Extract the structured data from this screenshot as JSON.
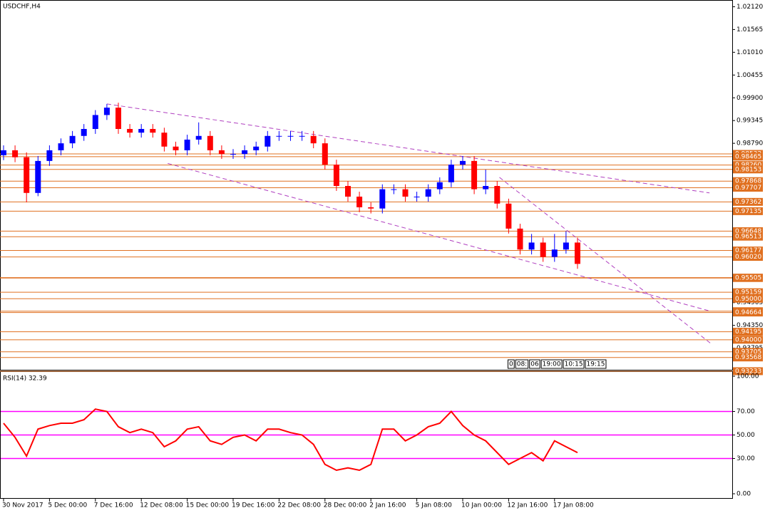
{
  "chart_data": [
    {
      "type": "candlestick",
      "title": "USDCHF,H4",
      "categories": [
        "30 Nov 2017",
        null,
        null,
        null,
        "5 Dec 00:00",
        null,
        null,
        null,
        "7 Dec 16:00",
        null,
        null,
        null,
        "12 Dec 08:00",
        null,
        null,
        null,
        "15 Dec 00:00",
        null,
        null,
        null,
        "19 Dec 16:00",
        null,
        null,
        null,
        "22 Dec 08:00",
        null,
        null,
        null,
        "28 Dec 00:00",
        null,
        null,
        null,
        "2 Jan 16:00",
        null,
        null,
        null,
        "5 Jan 08:00",
        null,
        null,
        null,
        "10 Jan 00:00",
        null,
        null,
        null,
        "12 Jan 16:00",
        null,
        null,
        null,
        "17 Jan 08:00",
        null,
        null
      ],
      "open": [
        0.985,
        0.9862,
        0.9845,
        0.9758,
        0.9836,
        0.9862,
        0.9879,
        0.9897,
        0.9914,
        0.9948,
        0.9966,
        0.9914,
        0.9905,
        0.9914,
        0.9905,
        0.9871,
        0.9862,
        0.9888,
        0.9897,
        0.9862,
        0.9853,
        0.9853,
        0.9862,
        0.9871,
        0.9897,
        0.9897,
        0.9897,
        0.9897,
        0.9879,
        0.9827,
        0.9775,
        0.9749,
        0.9723,
        0.972,
        0.9767,
        0.9767,
        0.9749,
        0.9749,
        0.9767,
        0.9784,
        0.9827,
        0.9836,
        0.9767,
        0.9775,
        0.9732,
        0.9671,
        0.962,
        0.9637,
        0.9602,
        0.962,
        0.9637
      ],
      "high": [
        0.9874,
        0.9874,
        0.9857,
        0.9848,
        0.9874,
        0.9891,
        0.9909,
        0.9926,
        0.996,
        0.9975,
        0.9978,
        0.9926,
        0.9926,
        0.9926,
        0.9917,
        0.9883,
        0.99,
        0.993,
        0.9909,
        0.9874,
        0.9865,
        0.9874,
        0.9883,
        0.9909,
        0.9909,
        0.9909,
        0.9909,
        0.9909,
        0.9891,
        0.9839,
        0.9787,
        0.9761,
        0.9735,
        0.9779,
        0.9779,
        0.9779,
        0.9761,
        0.9779,
        0.9796,
        0.9839,
        0.9848,
        0.9848,
        0.9815,
        0.9787,
        0.9744,
        0.9683,
        0.9658,
        0.9649,
        0.9658,
        0.9665,
        0.9649
      ],
      "low": [
        0.9838,
        0.9833,
        0.9735,
        0.975,
        0.9824,
        0.985,
        0.9867,
        0.9885,
        0.9902,
        0.9936,
        0.9902,
        0.9893,
        0.9893,
        0.9893,
        0.9859,
        0.985,
        0.985,
        0.9876,
        0.985,
        0.9841,
        0.9841,
        0.9841,
        0.985,
        0.9859,
        0.9885,
        0.9885,
        0.9885,
        0.9867,
        0.9815,
        0.9763,
        0.9737,
        0.9711,
        0.9708,
        0.9708,
        0.9755,
        0.9737,
        0.9737,
        0.9737,
        0.9755,
        0.9772,
        0.9815,
        0.9755,
        0.9755,
        0.972,
        0.9659,
        0.9608,
        0.9608,
        0.959,
        0.959,
        0.961,
        0.9573
      ],
      "close": [
        0.9862,
        0.9845,
        0.9758,
        0.9836,
        0.9862,
        0.9879,
        0.9897,
        0.9914,
        0.9948,
        0.9966,
        0.9914,
        0.9905,
        0.9914,
        0.9905,
        0.9871,
        0.9862,
        0.9888,
        0.9897,
        0.9862,
        0.9853,
        0.9853,
        0.9862,
        0.9871,
        0.9897,
        0.9897,
        0.9897,
        0.9897,
        0.9879,
        0.9827,
        0.9775,
        0.9749,
        0.9723,
        0.972,
        0.9767,
        0.9767,
        0.9749,
        0.9749,
        0.9767,
        0.9784,
        0.9827,
        0.9836,
        0.9767,
        0.9775,
        0.9732,
        0.9671,
        0.962,
        0.9637,
        0.9602,
        0.962,
        0.9637,
        0.9585
      ],
      "up_color": "#0000ff",
      "down_color": "#ff0000",
      "ylim": [
        1.0225,
        0.9325
      ],
      "yticks": [
        {
          "value": 1.0212,
          "label": "1.02120"
        },
        {
          "value": 1.01565,
          "label": "1.01565"
        },
        {
          "value": 1.0101,
          "label": "1.01010"
        },
        {
          "value": 1.00455,
          "label": "1.00455"
        },
        {
          "value": 0.999,
          "label": "0.99900"
        },
        {
          "value": 0.99345,
          "label": "0.99345"
        },
        {
          "value": 0.9879,
          "label": "0.98790"
        },
        {
          "value": 0.94905,
          "label": "0.94905"
        },
        {
          "value": 0.9435,
          "label": "0.94350"
        },
        {
          "value": 0.93795,
          "label": "0.93795"
        }
      ],
      "levels": [
        {
          "value": 0.98532,
          "label": "0.98532"
        },
        {
          "value": 0.98465,
          "label": "0.98465"
        },
        {
          "value": 0.9826,
          "label": "0.98260"
        },
        {
          "value": 0.98153,
          "label": "0.98153"
        },
        {
          "value": 0.97868,
          "label": "0.97868"
        },
        {
          "value": 0.97707,
          "label": "0.97707"
        },
        {
          "value": 0.97362,
          "label": "0.97362"
        },
        {
          "value": 0.97135,
          "label": "0.97135"
        },
        {
          "value": 0.96648,
          "label": "0.96648"
        },
        {
          "value": 0.96513,
          "label": "0.96513"
        },
        {
          "value": 0.96177,
          "label": "0.96177"
        },
        {
          "value": 0.9602,
          "label": "0.96020"
        },
        {
          "value": 0.95515,
          "label": "0.95515"
        },
        {
          "value": 0.95505,
          "label": "0.95505"
        },
        {
          "value": 0.95159,
          "label": "0.95159"
        },
        {
          "value": 0.95,
          "label": "0.95000"
        },
        {
          "value": 0.94696,
          "label": "0.94696"
        },
        {
          "value": 0.94664,
          "label": "0.94664"
        },
        {
          "value": 0.94195,
          "label": "0.94195"
        },
        {
          "value": 0.94,
          "label": "0.94000"
        },
        {
          "value": 0.93705,
          "label": "0.93705"
        },
        {
          "value": 0.93568,
          "label": "0.93568"
        },
        {
          "value": 0.93233,
          "label": "0.93233"
        }
      ],
      "level_color": "#e07020",
      "trendlines": [
        {
          "x": [
            9,
            61.5
          ],
          "y": [
            0.9975,
            0.9758
          ]
        },
        {
          "x": [
            14.3,
            61.4
          ],
          "y": [
            0.983,
            0.9471
          ]
        },
        {
          "x": [
            43.2,
            61.7
          ],
          "y": [
            0.9796,
            0.9389
          ]
        }
      ],
      "trend_color": "#b040c0",
      "time_marks": [
        "0",
        "08:",
        "06",
        "19:00",
        "10:15",
        "19:15"
      ]
    },
    {
      "type": "line",
      "title": "RSI(14) 32.39",
      "values": [
        60,
        48,
        32,
        55,
        58,
        60,
        60,
        63,
        72,
        70,
        57,
        52,
        55,
        52,
        40,
        45,
        55,
        57,
        45,
        42,
        48,
        50,
        45,
        55,
        55,
        52,
        50,
        42,
        25,
        20,
        22,
        20,
        25,
        55,
        55,
        45,
        50,
        57,
        60,
        70,
        58,
        50,
        45,
        35,
        25,
        30,
        35,
        28,
        45,
        40,
        35
      ],
      "color": "#ff0000",
      "level_color": "#ff00ff",
      "levels": [
        70,
        50,
        30
      ],
      "ylim": [
        0,
        100
      ],
      "yticks": [
        {
          "value": 100,
          "label": "100.00"
        },
        {
          "value": 70,
          "label": "70.00"
        },
        {
          "value": 50,
          "label": "50.00"
        },
        {
          "value": 30,
          "label": "30.00"
        },
        {
          "value": 0,
          "label": "0.00"
        }
      ]
    }
  ]
}
